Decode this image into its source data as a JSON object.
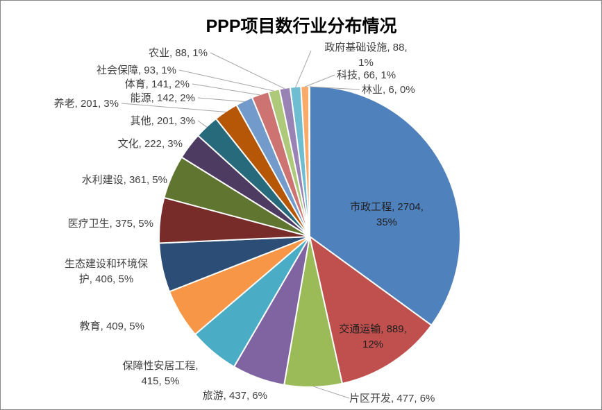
{
  "chart_data": {
    "type": "pie",
    "title": "PPP项目数行业分布情况",
    "slices": [
      {
        "name": "市政工程",
        "value": 2704,
        "percent": "35%",
        "label": "市政工程, 2704, 35%",
        "color": "#4F81BD"
      },
      {
        "name": "交通运输",
        "value": 889,
        "percent": "12%",
        "label": "交通运输, 889, 12%",
        "color": "#C0504D"
      },
      {
        "name": "片区开发",
        "value": 477,
        "percent": "6%",
        "label": "片区开发, 477, 6%",
        "color": "#9BBB59"
      },
      {
        "name": "旅游",
        "value": 437,
        "percent": "6%",
        "label": "旅游, 437, 6%",
        "color": "#8064A2"
      },
      {
        "name": "保障性安居工程",
        "value": 415,
        "percent": "5%",
        "label": "保障性安居工程, 415, 5%",
        "color": "#4BACC6"
      },
      {
        "name": "教育",
        "value": 409,
        "percent": "5%",
        "label": "教育, 409, 5%",
        "color": "#F79646"
      },
      {
        "name": "生态建设和环境保护",
        "value": 406,
        "percent": "5%",
        "label": "生态建设和环境保护, 406, 5%",
        "color": "#2C4D75"
      },
      {
        "name": "医疗卫生",
        "value": 375,
        "percent": "5%",
        "label": "医疗卫生, 375, 5%",
        "color": "#772C2A"
      },
      {
        "name": "水利建设",
        "value": 361,
        "percent": "5%",
        "label": "水利建设, 361, 5%",
        "color": "#5F7530"
      },
      {
        "name": "文化",
        "value": 222,
        "percent": "3%",
        "label": "文化, 222, 3%",
        "color": "#4D3B62"
      },
      {
        "name": "其他",
        "value": 201,
        "percent": "3%",
        "label": "其他, 201, 3%",
        "color": "#276A7C"
      },
      {
        "name": "养老",
        "value": 201,
        "percent": "3%",
        "label": "养老, 201, 3%",
        "color": "#B65708"
      },
      {
        "name": "能源",
        "value": 142,
        "percent": "2%",
        "label": "能源, 142, 2%",
        "color": "#729ACA"
      },
      {
        "name": "体育",
        "value": 141,
        "percent": "2%",
        "label": "体育, 141, 2%",
        "color": "#CD7371"
      },
      {
        "name": "社会保障",
        "value": 93,
        "percent": "1%",
        "label": "社会保障, 93, 1%",
        "color": "#AFC97A"
      },
      {
        "name": "农业",
        "value": 88,
        "percent": "1%",
        "label": "农业, 88, 1%",
        "color": "#9983B5"
      },
      {
        "name": "政府基础设施",
        "value": 88,
        "percent": "1%",
        "label": "政府基础设施, 88, 1%",
        "color": "#6FBDD1"
      },
      {
        "name": "科技",
        "value": 66,
        "percent": "1%",
        "label": "科技, 66, 1%",
        "color": "#F9AB6B"
      },
      {
        "name": "林业",
        "value": 6,
        "percent": "0%",
        "label": "林业, 6, 0%",
        "color": "#3A679C"
      }
    ],
    "legend": "none"
  }
}
